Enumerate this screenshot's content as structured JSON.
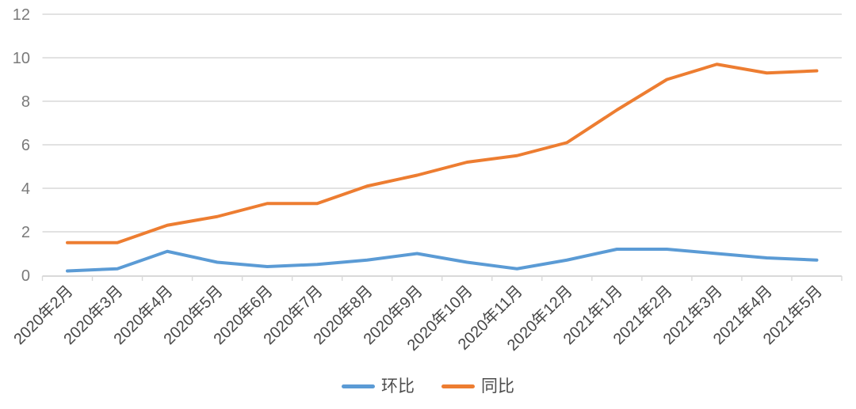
{
  "chart_data": {
    "type": "line",
    "title": "",
    "xlabel": "",
    "ylabel": "",
    "categories": [
      "2020年2月",
      "2020年3月",
      "2020年4月",
      "2020年5月",
      "2020年6月",
      "2020年7月",
      "2020年8月",
      "2020年9月",
      "2020年10月",
      "2020年11月",
      "2020年12月",
      "2021年1月",
      "2021年2月",
      "2021年3月",
      "2021年4月",
      "2021年5月"
    ],
    "series": [
      {
        "name": "环比",
        "color": "#5B9BD5",
        "values": [
          0.2,
          0.3,
          1.1,
          0.6,
          0.4,
          0.5,
          0.7,
          1.0,
          0.6,
          0.3,
          0.7,
          1.2,
          1.2,
          1.0,
          0.8,
          0.7
        ]
      },
      {
        "name": "同比",
        "color": "#ED7D31",
        "values": [
          1.5,
          1.5,
          2.3,
          2.7,
          3.3,
          3.3,
          4.1,
          4.6,
          5.2,
          5.5,
          6.1,
          7.6,
          9.0,
          9.7,
          9.3,
          9.4
        ]
      }
    ],
    "ylim": [
      0,
      12
    ],
    "yticks": [
      0,
      2,
      4,
      6,
      8,
      10,
      12
    ],
    "grid": "horizontal-only",
    "x_label_rotation_deg": -45,
    "legend_position": "bottom-center",
    "colors": {
      "gridline": "#D9D9D9",
      "axis_line": "#D9D9D9",
      "y_tick_label": "#7a7a7a",
      "x_tick_label": "#474747",
      "legend_text": "#4d4d4d"
    }
  }
}
